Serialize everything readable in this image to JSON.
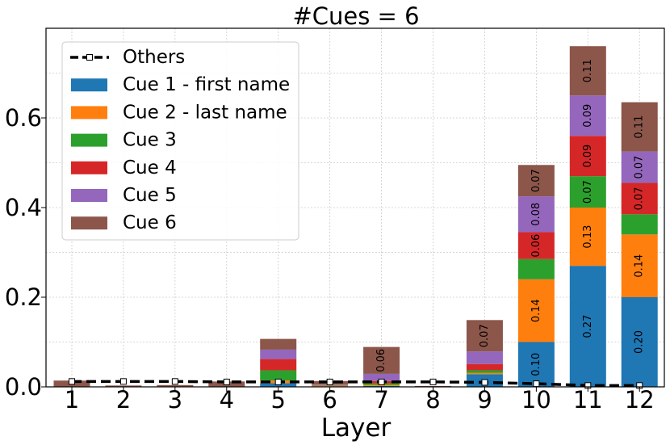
{
  "chart_data": {
    "type": "bar",
    "stacked": true,
    "title": "#Cues = 6",
    "xlabel": "Layer",
    "ylabel": "",
    "ylim": [
      0,
      0.8
    ],
    "yticks": [
      0.0,
      0.2,
      0.4,
      0.6
    ],
    "ytick_labels": [
      "0.0",
      "0.2",
      "0.4",
      "0.6"
    ],
    "grid": true,
    "legend_position": "top-left",
    "categories": [
      "1",
      "2",
      "3",
      "4",
      "5",
      "6",
      "7",
      "8",
      "9",
      "10",
      "11",
      "12"
    ],
    "series": [
      {
        "name": "Cue 1 - first name",
        "color": "#1f77b4",
        "values": [
          0.0,
          0.0,
          0.0,
          0.0,
          0.008,
          0.001,
          0.002,
          0.0,
          0.028,
          0.1,
          0.27,
          0.2
        ],
        "labels": [
          "",
          "",
          "",
          "",
          "",
          "",
          "",
          "",
          "",
          "0.10",
          "0.27",
          "0.20"
        ]
      },
      {
        "name": "Cue 2 - last name",
        "color": "#ff7f0e",
        "values": [
          0.0,
          0.0,
          0.0,
          0.0,
          0.006,
          0.001,
          0.002,
          0.0,
          0.003,
          0.14,
          0.13,
          0.14
        ],
        "labels": [
          "",
          "",
          "",
          "",
          "",
          "",
          "",
          "",
          "",
          "0.14",
          "0.13",
          "0.14"
        ]
      },
      {
        "name": "Cue 3",
        "color": "#2ca02c",
        "values": [
          0.0,
          0.0,
          0.0,
          0.0,
          0.023,
          0.001,
          0.004,
          0.0,
          0.006,
          0.045,
          0.07,
          0.045
        ],
        "labels": [
          "",
          "",
          "",
          "",
          "",
          "",
          "",
          "",
          "",
          "",
          "0.07",
          ""
        ]
      },
      {
        "name": "Cue 4",
        "color": "#d62728",
        "values": [
          0.0,
          0.0,
          0.0,
          0.0,
          0.025,
          0.001,
          0.005,
          0.0,
          0.014,
          0.06,
          0.09,
          0.07
        ],
        "labels": [
          "",
          "",
          "",
          "",
          "",
          "",
          "",
          "",
          "",
          "0.06",
          "0.09",
          "0.07"
        ]
      },
      {
        "name": "Cue 5",
        "color": "#9467bd",
        "values": [
          0.0,
          0.0,
          0.0,
          0.0,
          0.021,
          0.001,
          0.016,
          0.0,
          0.028,
          0.08,
          0.09,
          0.07
        ],
        "labels": [
          "",
          "",
          "",
          "",
          "",
          "",
          "",
          "",
          "",
          "0.08",
          "0.09",
          "0.07"
        ]
      },
      {
        "name": "Cue 6",
        "color": "#8c564b",
        "values": [
          0.014,
          0.003,
          0.004,
          0.012,
          0.024,
          0.008,
          0.06,
          0.002,
          0.07,
          0.07,
          0.11,
          0.11
        ],
        "labels": [
          "",
          "",
          "",
          "",
          "",
          "",
          "0.06",
          "",
          "0.07",
          "0.07",
          "0.11",
          "0.11"
        ]
      }
    ],
    "line_series": {
      "name": "Others",
      "color": "#000000",
      "style": "dashed",
      "marker": "square",
      "values": [
        0.012,
        0.012,
        0.012,
        0.011,
        0.011,
        0.011,
        0.011,
        0.011,
        0.01,
        0.007,
        0.003,
        0.003
      ]
    }
  }
}
